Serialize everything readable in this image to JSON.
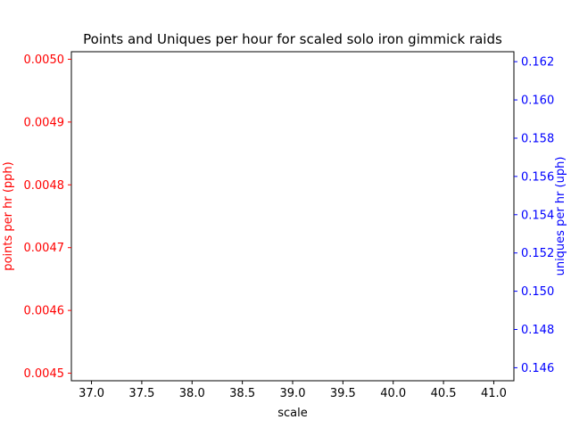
{
  "chart_data": {
    "type": "line",
    "title": "Points and Uniques per hour for scaled solo iron gimmick raids",
    "xlabel": "scale",
    "ylabel_left": "points per hr (pph)",
    "ylabel_right": "uniques per hr (uph)",
    "xlim": [
      36.8,
      41.2
    ],
    "ylim_left": [
      0.004488,
      0.005012
    ],
    "ylim_right": [
      0.14532,
      0.16252
    ],
    "x_ticks": [
      37.0,
      37.5,
      38.0,
      38.5,
      39.0,
      39.5,
      40.0,
      40.5,
      41.0
    ],
    "x_tick_labels": [
      "37.0",
      "37.5",
      "38.0",
      "38.5",
      "39.0",
      "39.5",
      "40.0",
      "40.5",
      "41.0"
    ],
    "y_left_ticks": [
      0.0045,
      0.0046,
      0.0047,
      0.0048,
      0.0049,
      0.005
    ],
    "y_left_tick_labels": [
      "0.0045",
      "0.0046",
      "0.0047",
      "0.0048",
      "0.0049",
      "0.0050"
    ],
    "y_right_ticks": [
      0.146,
      0.148,
      0.15,
      0.152,
      0.154,
      0.156,
      0.158,
      0.16,
      0.162
    ],
    "y_right_tick_labels": [
      "0.146",
      "0.148",
      "0.150",
      "0.152",
      "0.154",
      "0.156",
      "0.158",
      "0.160",
      "0.162"
    ],
    "series": [
      {
        "axis": "left",
        "color": "#ff0000",
        "x": [],
        "values": []
      },
      {
        "axis": "right",
        "color": "#0000ff",
        "x": [],
        "values": []
      }
    ],
    "grid": false,
    "colors": {
      "left_axis": "#ff0000",
      "right_axis": "#0000ff",
      "frame": "#000000"
    }
  }
}
